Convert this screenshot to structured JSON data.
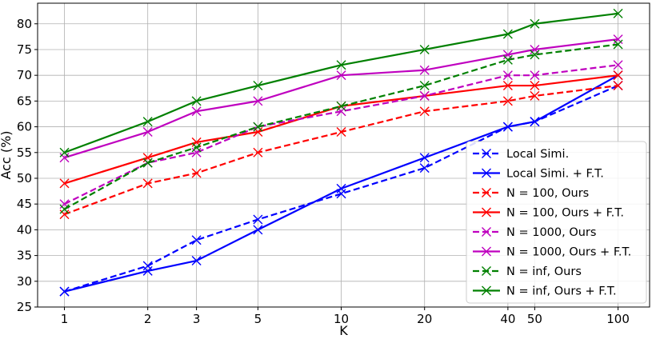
{
  "chart_data": {
    "type": "line",
    "title": "",
    "xlabel": "K",
    "ylabel": "Acc (%)",
    "x": [
      1,
      2,
      3,
      5,
      10,
      20,
      40,
      50,
      100
    ],
    "x_scale": "log",
    "x_ticks": [
      1,
      2,
      3,
      5,
      10,
      20,
      40,
      50,
      100
    ],
    "x_tick_labels": [
      "1",
      "2",
      "3",
      "5",
      "10",
      "20",
      "40",
      "50",
      "100"
    ],
    "ylim": [
      25,
      84
    ],
    "y_ticks": [
      25,
      30,
      35,
      40,
      45,
      50,
      55,
      60,
      65,
      70,
      75,
      80
    ],
    "y_tick_labels": [
      "25",
      "30",
      "35",
      "40",
      "45",
      "50",
      "55",
      "60",
      "65",
      "70",
      "75",
      "80"
    ],
    "grid": true,
    "legend_position": "bottom-right",
    "marker": "x",
    "series": [
      {
        "name": "Local Simi.",
        "color": "#0000ff",
        "dashed": true,
        "values": [
          28,
          33,
          38,
          42,
          47,
          52,
          60,
          61,
          68
        ]
      },
      {
        "name": "Local Simi. + F.T.",
        "color": "#0000ff",
        "dashed": false,
        "values": [
          28,
          32,
          34,
          40,
          48,
          54,
          60,
          61,
          70
        ]
      },
      {
        "name": "N = 100, Ours",
        "color": "#ff0000",
        "dashed": true,
        "values": [
          43,
          49,
          51,
          55,
          59,
          63,
          65,
          66,
          68
        ]
      },
      {
        "name": "N = 100, Ours + F.T.",
        "color": "#ff0000",
        "dashed": false,
        "values": [
          49,
          54,
          57,
          59,
          64,
          66,
          68,
          68,
          70
        ]
      },
      {
        "name": "N = 1000, Ours",
        "color": "#bf00bf",
        "dashed": true,
        "values": [
          45,
          53,
          55,
          60,
          63,
          66,
          70,
          70,
          72
        ]
      },
      {
        "name": "N = 1000, Ours + F.T.",
        "color": "#bf00bf",
        "dashed": false,
        "values": [
          54,
          59,
          63,
          65,
          70,
          71,
          74,
          75,
          77
        ]
      },
      {
        "name": "N = inf, Ours",
        "color": "#008000",
        "dashed": true,
        "values": [
          44,
          53,
          56,
          60,
          64,
          68,
          73,
          74,
          76
        ]
      },
      {
        "name": "N = inf, Ours + F.T.",
        "color": "#008000",
        "dashed": false,
        "values": [
          55,
          61,
          65,
          68,
          72,
          75,
          78,
          80,
          82
        ]
      }
    ]
  }
}
